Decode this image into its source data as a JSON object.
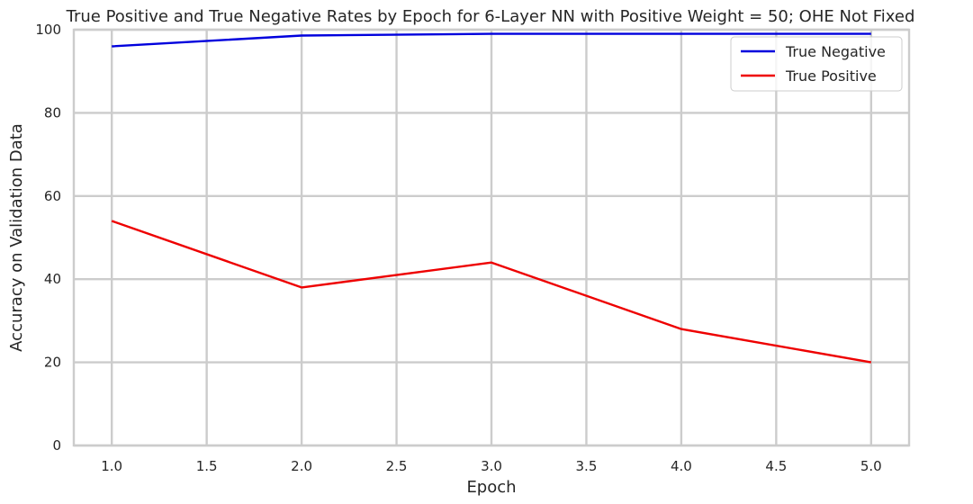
{
  "chart_data": {
    "type": "line",
    "title": "True Positive and True Negative Rates by Epoch for 6-Layer NN with Positive Weight = 50; OHE Not Fixed",
    "xlabel": "Epoch",
    "ylabel": "Accuracy on Validation Data",
    "xlim": [
      0.8,
      5.2
    ],
    "ylim": [
      0,
      100
    ],
    "xticks": [
      1.0,
      1.5,
      2.0,
      2.5,
      3.0,
      3.5,
      4.0,
      4.5,
      5.0
    ],
    "xtick_labels": [
      "1.0",
      "1.5",
      "2.0",
      "2.5",
      "3.0",
      "3.5",
      "4.0",
      "4.5",
      "5.0"
    ],
    "yticks": [
      0,
      20,
      40,
      60,
      80,
      100
    ],
    "ytick_labels": [
      "0",
      "20",
      "40",
      "60",
      "80",
      "100"
    ],
    "grid": true,
    "legend_position": "top-right",
    "x": [
      1,
      2,
      3,
      4,
      5
    ],
    "series": [
      {
        "name": "True Negative",
        "color": "#0000dd",
        "values": [
          96.0,
          98.6,
          99.0,
          99.0,
          99.0
        ]
      },
      {
        "name": "True Positive",
        "color": "#ee0000",
        "values": [
          54.0,
          38.0,
          44.0,
          28.0,
          20.0
        ]
      }
    ]
  }
}
